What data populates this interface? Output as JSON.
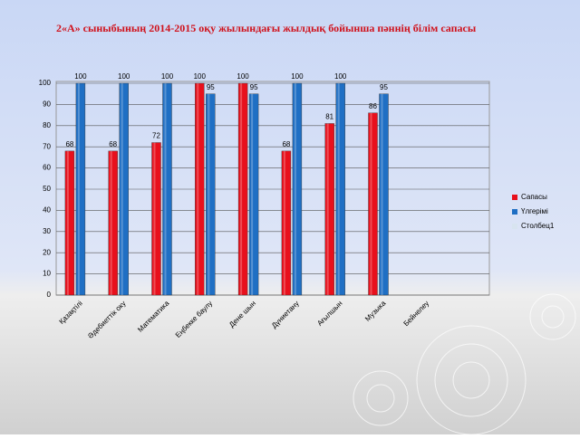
{
  "chart_data": {
    "type": "bar",
    "title": "2«А» сыныбының 2014-2015 оқу жылындағы жылдық бойынша пәннің білім  сапасы",
    "categories": [
      "Қазақтілі",
      "Әдебиеттік оку",
      "Математика",
      "Еңбекке баулу",
      "Дене шын",
      "Дүниетану",
      "Ағылшын",
      "Музыка",
      "Бейнелеу",
      null
    ],
    "series": [
      {
        "name": "Сапасы",
        "color": "#e8101c",
        "values": [
          68,
          68,
          72,
          100,
          100,
          68,
          81,
          86,
          null,
          null
        ]
      },
      {
        "name": "Үлгерімі",
        "color": "#1f6fc4",
        "values": [
          100,
          100,
          100,
          95,
          95,
          100,
          100,
          95,
          null,
          null
        ]
      },
      {
        "name": "Столбец1",
        "color": "#d8e4f0",
        "values": [
          null,
          null,
          null,
          null,
          null,
          null,
          null,
          null,
          null,
          null
        ]
      }
    ],
    "ylim": [
      0,
      100
    ],
    "yticks": [
      0,
      10,
      20,
      30,
      40,
      50,
      60,
      70,
      80,
      90,
      100
    ],
    "grid": true
  }
}
